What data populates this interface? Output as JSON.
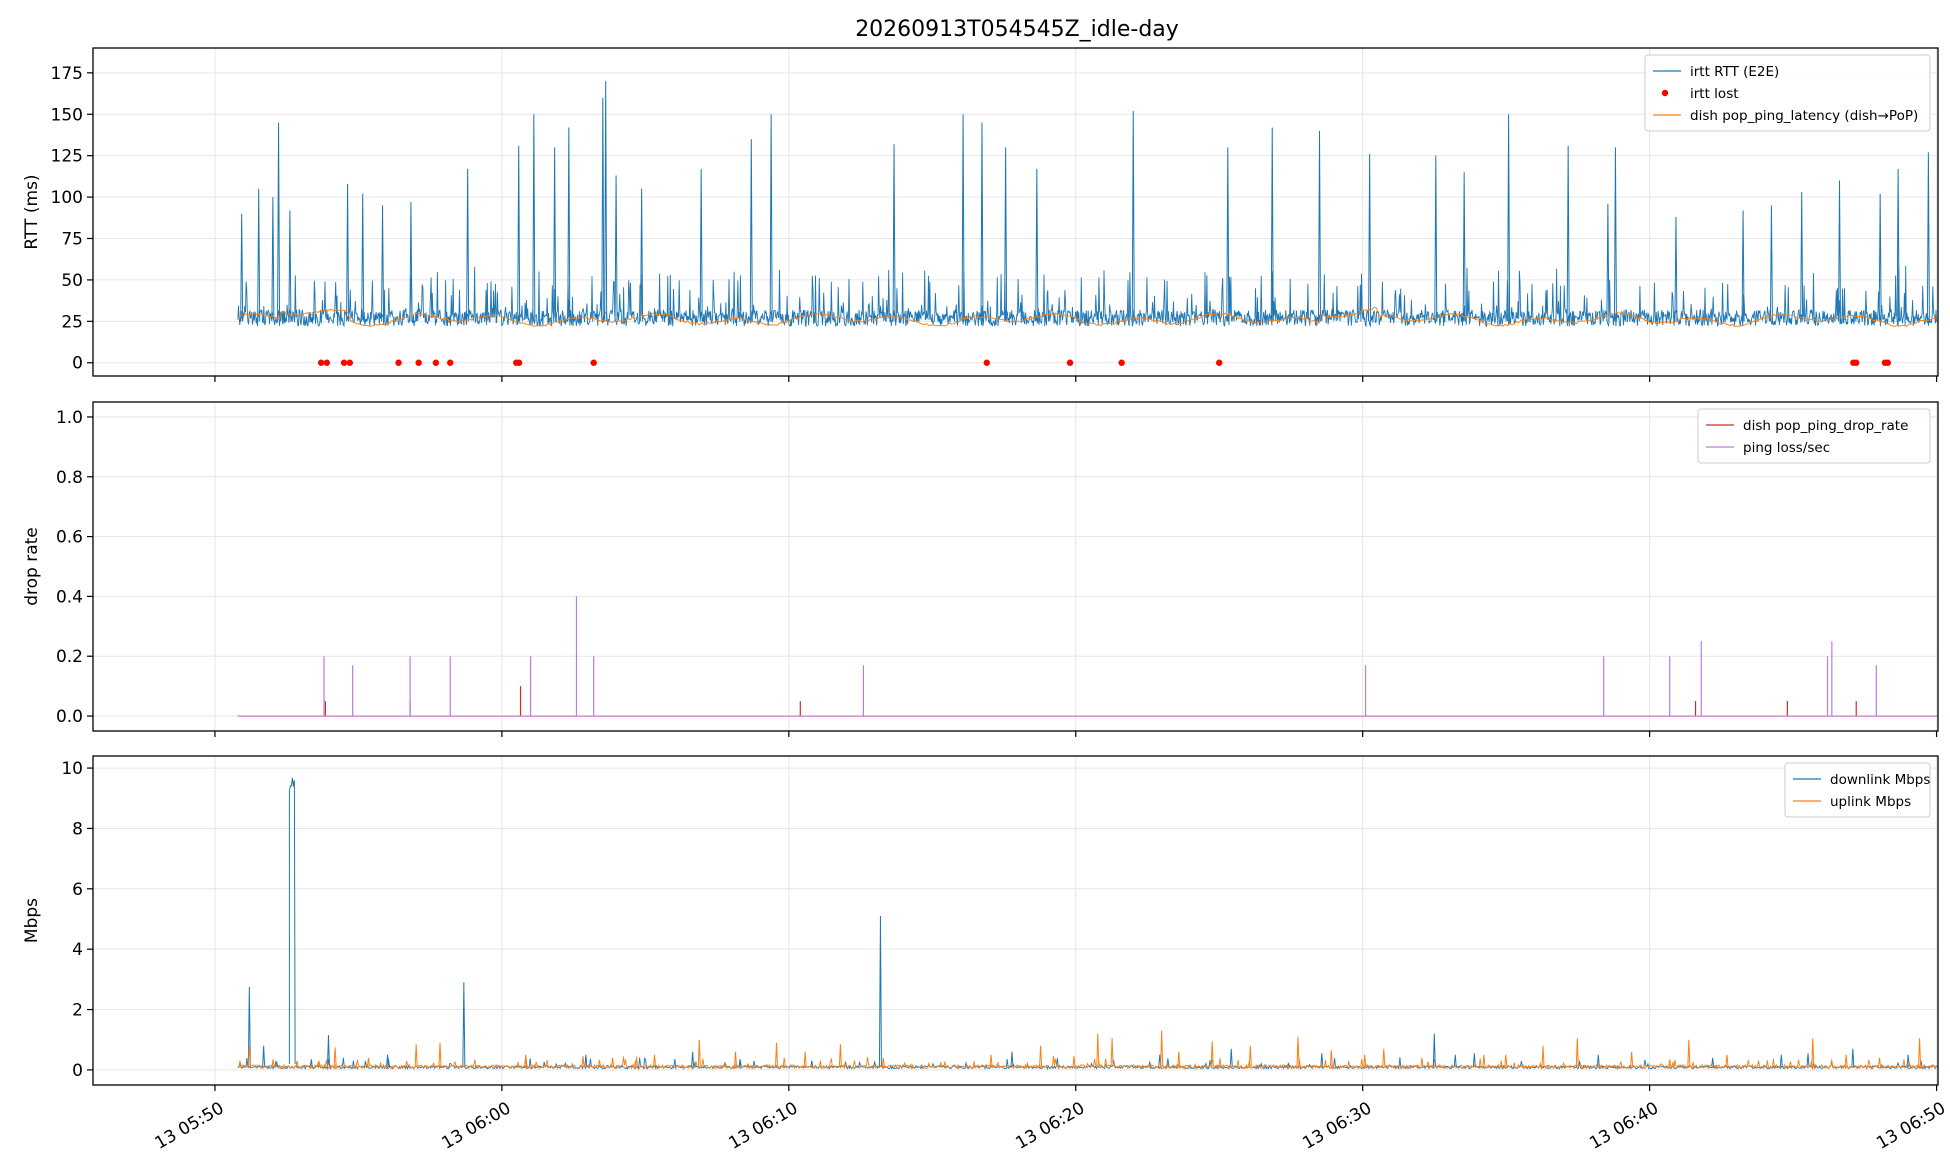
{
  "title": "20260913T054545Z_idle-day",
  "x_ticks": [
    "13 05:50",
    "13 06:00",
    "13 06:10",
    "13 06:20",
    "13 06:30",
    "13 06:40",
    "13 06:50"
  ],
  "chart_data": [
    {
      "type": "line",
      "ylabel": "RTT (ms)",
      "ylim": [
        -8,
        190
      ],
      "yticks": [
        0,
        25,
        50,
        75,
        100,
        125,
        150,
        175
      ],
      "ytick_labels": [
        "0",
        "25",
        "50",
        "75",
        "100",
        "125",
        "150",
        "175"
      ],
      "xlim": [
        "05:45:45",
        "06:50:00"
      ],
      "grid": true,
      "legend_position": "top-right",
      "legend": [
        "irtt RTT (E2E)",
        "irtt lost",
        "dish pop_ping_latency (dish→PoP)"
      ],
      "series": [
        {
          "name": "irtt RTT (E2E)",
          "color": "#1f77b4",
          "kind": "noisy-line",
          "t_range_min": [
            5.8,
            66.0
          ],
          "baseline": 25,
          "spikes": [
            [
              6.2,
              90
            ],
            [
              8.0,
              105
            ],
            [
              9.5,
              100
            ],
            [
              10.1,
              145
            ],
            [
              11.3,
              92
            ],
            [
              17.4,
              108
            ],
            [
              19.0,
              102
            ],
            [
              21.1,
              95
            ],
            [
              24.1,
              97
            ],
            [
              30.1,
              117
            ],
            [
              35.5,
              131
            ],
            [
              37.1,
              150
            ],
            [
              39.3,
              130
            ],
            [
              40.8,
              142
            ],
            [
              44.4,
              160
            ],
            [
              44.7,
              170
            ],
            [
              45.8,
              113
            ],
            [
              48.5,
              105
            ],
            [
              54.8,
              117
            ],
            [
              60.1,
              135
            ],
            [
              62.2,
              150
            ],
            [
              75.2,
              132
            ],
            [
              82.5,
              150
            ],
            [
              84.5,
              145
            ],
            [
              87.0,
              130
            ],
            [
              90.3,
              117
            ],
            [
              100.5,
              152
            ],
            [
              110.5,
              130
            ],
            [
              115.2,
              142
            ],
            [
              120.2,
              140
            ],
            [
              125.5,
              126
            ],
            [
              132.5,
              125
            ],
            [
              135.5,
              115
            ],
            [
              140.2,
              150
            ],
            [
              146.5,
              131
            ],
            [
              150.7,
              96
            ],
            [
              151.5,
              130
            ],
            [
              157.9,
              88
            ],
            [
              165.0,
              92
            ],
            [
              168.0,
              95
            ],
            [
              171.2,
              103
            ],
            [
              175.2,
              110
            ],
            [
              179.5,
              102
            ],
            [
              181.4,
              117
            ],
            [
              184.6,
              127
            ]
          ]
        },
        {
          "name": "irtt lost",
          "color": "#ff0000",
          "kind": "points",
          "value": 0,
          "t_min": [
            8.7,
            8.9,
            9.5,
            9.7,
            11.4,
            12.1,
            12.7,
            13.2,
            15.5,
            15.6,
            18.2,
            31.9,
            34.8,
            36.6,
            40.0,
            62.1,
            62.2,
            63.2,
            63.3,
            69.3
          ]
        },
        {
          "name": "dish pop_ping_latency (dish→PoP)",
          "color": "#ff7f0e",
          "kind": "smooth-line",
          "t_range_min": [
            5.8,
            66.5
          ],
          "baseline": 26
        }
      ]
    },
    {
      "type": "line",
      "ylabel": "drop rate",
      "ylim": [
        -0.05,
        1.05
      ],
      "yticks": [
        0.0,
        0.2,
        0.4,
        0.6,
        0.8,
        1.0
      ],
      "ytick_labels": [
        "0.0",
        "0.2",
        "0.4",
        "0.6",
        "0.8",
        "1.0"
      ],
      "grid": true,
      "legend_position": "top-right",
      "legend": [
        "dish pop_ping_drop_rate",
        "ping loss/sec"
      ],
      "series": [
        {
          "name": "dish pop_ping_drop_rate",
          "color": "#d62728",
          "kind": "spikes",
          "t_range_min": [
            5.8,
            66.5
          ],
          "events": [
            [
              8.85,
              0.05
            ],
            [
              11.8,
              0.05
            ],
            [
              15.65,
              0.1
            ],
            [
              25.4,
              0.05
            ],
            [
              56.6,
              0.05
            ],
            [
              59.8,
              0.05
            ],
            [
              62.2,
              0.05
            ]
          ]
        },
        {
          "name": "ping loss/sec",
          "color": "#b87fd6",
          "kind": "spikes",
          "t_range_min": [
            5.8,
            66.0
          ],
          "events": [
            [
              8.8,
              0.2
            ],
            [
              9.8,
              0.17
            ],
            [
              11.8,
              0.2
            ],
            [
              13.2,
              0.2
            ],
            [
              16.0,
              0.2
            ],
            [
              17.6,
              0.4
            ],
            [
              18.2,
              0.2
            ],
            [
              27.6,
              0.17
            ],
            [
              45.1,
              0.17
            ],
            [
              53.4,
              0.2
            ],
            [
              55.7,
              0.2
            ],
            [
              56.8,
              0.25
            ],
            [
              61.2,
              0.2
            ],
            [
              61.35,
              0.25
            ],
            [
              62.9,
              0.17
            ]
          ]
        }
      ]
    },
    {
      "type": "line",
      "ylabel": "Mbps",
      "ylim": [
        -0.5,
        10.4
      ],
      "yticks": [
        0,
        2,
        4,
        6,
        8,
        10
      ],
      "ytick_labels": [
        "0",
        "2",
        "4",
        "6",
        "8",
        "10"
      ],
      "grid": true,
      "legend_position": "top-right",
      "legend": [
        "downlink Mbps",
        "uplink Mbps"
      ],
      "series": [
        {
          "name": "downlink Mbps",
          "color": "#1f77b4",
          "kind": "noisy-line",
          "t_range_min": [
            5.8,
            66.5
          ],
          "baseline": 0.1,
          "bursts": [
            [
              11.2,
              11.8,
              9.3
            ]
          ],
          "spikes": [
            [
              7.0,
              2.75
            ],
            [
              8.5,
              0.8
            ],
            [
              9.8,
              0.3
            ],
            [
              13.5,
              0.35
            ],
            [
              15.3,
              1.15
            ],
            [
              21.5,
              0.5
            ],
            [
              29.5,
              2.9
            ],
            [
              36.0,
              0.4
            ],
            [
              42.3,
              0.5
            ],
            [
              53.5,
              0.6
            ],
            [
              58.5,
              0.3
            ],
            [
              66.0,
              0.3
            ],
            [
              73.2,
              5.1
            ],
            [
              87.0,
              0.6
            ],
            [
              102.5,
              0.5
            ],
            [
              110.0,
              0.7
            ],
            [
              119.5,
              0.55
            ],
            [
              131.3,
              1.2
            ],
            [
              133.5,
              0.5
            ],
            [
              135.5,
              0.55
            ],
            [
              148.5,
              0.5
            ],
            [
              160.5,
              0.4
            ],
            [
              167.7,
              0.5
            ],
            [
              170.5,
              0.55
            ],
            [
              175.2,
              0.7
            ],
            [
              181.0,
              0.5
            ]
          ]
        },
        {
          "name": "uplink Mbps",
          "color": "#ff7f0e",
          "kind": "noisy-line",
          "t_range_min": [
            5.8,
            66.5
          ],
          "baseline": 0.12,
          "spikes": [
            [
              7.0,
              0.8
            ],
            [
              9.5,
              0.35
            ],
            [
              12.0,
              0.3
            ],
            [
              14.3,
              0.3
            ],
            [
              16.0,
              0.75
            ],
            [
              19.5,
              0.4
            ],
            [
              24.5,
              0.85
            ],
            [
              27.0,
              0.9
            ],
            [
              36.0,
              0.5
            ],
            [
              42.0,
              0.45
            ],
            [
              45.1,
              0.4
            ],
            [
              47.5,
              0.3
            ],
            [
              49.5,
              0.5
            ],
            [
              54.2,
              1.0
            ],
            [
              58.0,
              0.6
            ],
            [
              62.3,
              0.9
            ],
            [
              65.3,
              0.6
            ],
            [
              69.0,
              0.85
            ],
            [
              73.5,
              0.4
            ],
            [
              84.8,
              0.5
            ],
            [
              90.0,
              0.8
            ],
            [
              93.5,
              0.45
            ],
            [
              96.0,
              1.2
            ],
            [
              97.5,
              1.05
            ],
            [
              102.7,
              1.3
            ],
            [
              104.5,
              0.6
            ],
            [
              108.0,
              0.95
            ],
            [
              112.0,
              0.8
            ],
            [
              117.0,
              1.1
            ],
            [
              120.5,
              0.65
            ],
            [
              124.0,
              0.5
            ],
            [
              126.0,
              0.7
            ],
            [
              130.0,
              0.4
            ],
            [
              136.5,
              0.5
            ],
            [
              138.8,
              0.5
            ],
            [
              142.7,
              0.8
            ],
            [
              146.3,
              1.05
            ],
            [
              152.0,
              0.6
            ],
            [
              156.0,
              0.35
            ],
            [
              158.0,
              1.0
            ],
            [
              162.0,
              0.5
            ],
            [
              171.0,
              1.05
            ],
            [
              174.5,
              0.5
            ],
            [
              178.0,
              0.4
            ],
            [
              182.2,
              1.05
            ],
            [
              185.8,
              0.9
            ],
            [
              188.5,
              0.35
            ]
          ]
        }
      ]
    }
  ]
}
